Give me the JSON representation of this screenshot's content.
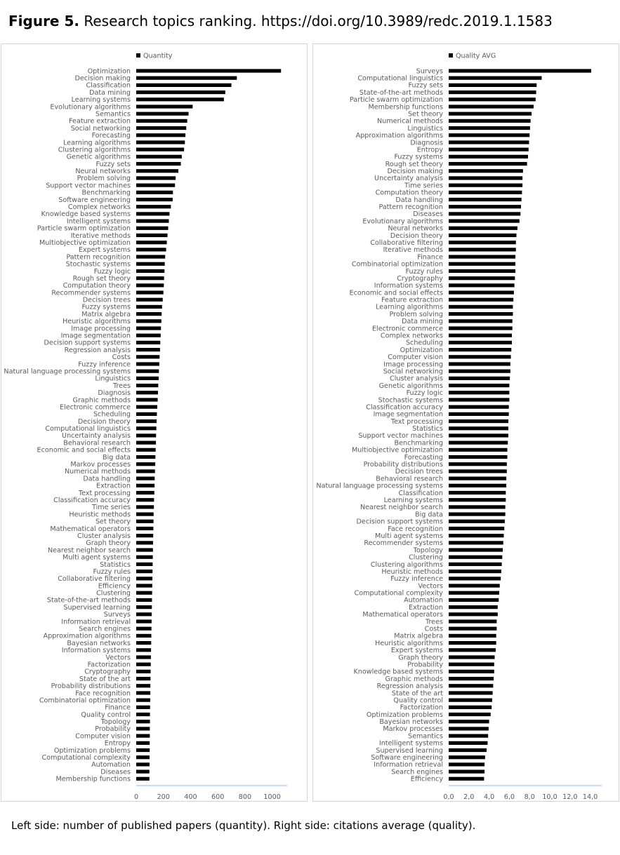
{
  "figure": {
    "label": "Figure 5.",
    "title": "Research topics ranking. https://doi.org/10.3989/redc.2019.1.1583"
  },
  "caption": "Left side: number of published papers (quantity). Right side: citations average (quality).",
  "colors": {
    "bar": "#000000",
    "axis": "#8eb4e3",
    "text": "#595959",
    "border": "#d4d4d4"
  },
  "chart_data": [
    {
      "type": "bar",
      "orientation": "horizontal",
      "legend": {
        "label": "Quantity",
        "position": "top-left"
      },
      "xlim": [
        0,
        1100
      ],
      "ticks": [
        0,
        200,
        400,
        600,
        800,
        1000
      ],
      "tick_labels": [
        "0",
        "200",
        "400",
        "600",
        "800",
        "1000"
      ],
      "grid": false,
      "categories": [
        "Optimization",
        "Decision making",
        "Classification",
        "Data mining",
        "Learning systems",
        "Evolutionary algorithms",
        "Semantics",
        "Feature extraction",
        "Social networking",
        "Forecasting",
        "Learning algorithms",
        "Clustering algorithms",
        "Genetic algorithms",
        "Fuzzy sets",
        "Neural networks",
        "Problem solving",
        "Support vector machines",
        "Benchmarking",
        "Software engineering",
        "Complex networks",
        "Knowledge based systems",
        "Intelligent systems",
        "Particle swarm optimization",
        "Iterative methods",
        "Multiobjective optimization",
        "Expert systems",
        "Pattern recognition",
        "Stochastic systems",
        "Fuzzy logic",
        "Rough set theory",
        "Computation theory",
        "Recommender systems",
        "Decision trees",
        "Fuzzy systems",
        "Matrix algebra",
        "Heuristic algorithms",
        "Image processing",
        "Image segmentation",
        "Decision support systems",
        "Regression analysis",
        "Costs",
        "Fuzzy inference",
        "Natural language processing systems",
        "Linguistics",
        "Trees",
        "Diagnosis",
        "Graphic methods",
        "Electronic commerce",
        "Scheduling",
        "Decision theory",
        "Computational linguistics",
        "Uncertainty analysis",
        "Behavioral research",
        "Economic and social effects",
        "Big data",
        "Markov processes",
        "Numerical methods",
        "Data handling",
        "Extraction",
        "Text processing",
        "Classification accuracy",
        "Time series",
        "Heuristic methods",
        "Set theory",
        "Mathematical operators",
        "Cluster analysis",
        "Graph theory",
        "Nearest neighbor search",
        "Multi agent systems",
        "Statistics",
        "Fuzzy rules",
        "Collaborative filtering",
        "Efficiency",
        "Clustering",
        "State-of-the-art methods",
        "Supervised learning",
        "Surveys",
        "Information retrieval",
        "Search engines",
        "Approximation algorithms",
        "Bayesian networks",
        "Information systems",
        "Vectors",
        "Factorization",
        "Cryptography",
        "State of the art",
        "Probability distributions",
        "Face recognition",
        "Combinatorial optimization",
        "Finance",
        "Quality control",
        "Topology",
        "Probability",
        "Computer vision",
        "Entropy",
        "Optimization problems",
        "Computational complexity",
        "Automation",
        "Diseases",
        "Membership functions"
      ],
      "values": [
        1065,
        740,
        700,
        655,
        645,
        415,
        385,
        375,
        368,
        362,
        358,
        352,
        335,
        328,
        310,
        290,
        285,
        270,
        268,
        255,
        245,
        240,
        235,
        230,
        225,
        220,
        213,
        210,
        208,
        205,
        203,
        200,
        195,
        190,
        187,
        185,
        182,
        180,
        177,
        175,
        172,
        170,
        167,
        165,
        162,
        160,
        158,
        155,
        152,
        150,
        148,
        146,
        145,
        143,
        141,
        140,
        138,
        136,
        135,
        133,
        131,
        130,
        128,
        127,
        126,
        125,
        124,
        123,
        122,
        121,
        120,
        119,
        118,
        117,
        116,
        115,
        114,
        113,
        112,
        111,
        110,
        109,
        108,
        107,
        106,
        105,
        104,
        104,
        103,
        102,
        101,
        101,
        100,
        100,
        99,
        99,
        98,
        98,
        97,
        97
      ]
    },
    {
      "type": "bar",
      "orientation": "horizontal",
      "legend": {
        "label": "Quality AVG",
        "position": "top-left"
      },
      "xlim": [
        0,
        15
      ],
      "ticks": [
        0,
        2,
        4,
        6,
        8,
        10,
        12,
        14
      ],
      "tick_labels": [
        "0,0",
        "2,0",
        "4,0",
        "6,0",
        "8,0",
        "10,0",
        "12,0",
        "14,0"
      ],
      "grid": false,
      "categories": [
        "Surveys",
        "Computational linguistics",
        "Fuzzy sets",
        "State-of-the-art methods",
        "Particle swarm optimization",
        "Membership functions",
        "Set theory",
        "Numerical methods",
        "Linguistics",
        "Approximation algorithms",
        "Diagnosis",
        "Entropy",
        "Fuzzy systems",
        "Rough set theory",
        "Decision making",
        "Uncertainty analysis",
        "Time series",
        "Computation theory",
        "Data handling",
        "Pattern recognition",
        "Diseases",
        "Evolutionary algorithms",
        "Neural networks",
        "Decision theory",
        "Collaborative filtering",
        "Iterative methods",
        "Finance",
        "Combinatorial optimization",
        "Fuzzy rules",
        "Cryptography",
        "Information systems",
        "Economic and social effects",
        "Feature extraction",
        "Learning algorithms",
        "Problem solving",
        "Data mining",
        "Electronic commerce",
        "Complex networks",
        "Scheduling",
        "Optimization",
        "Computer vision",
        "Image processing",
        "Social networking",
        "Cluster analysis",
        "Genetic algorithms",
        "Fuzzy logic",
        "Stochastic systems",
        "Classification accuracy",
        "Image segmentation",
        "Text processing",
        "Statistics",
        "Support vector machines",
        "Benchmarking",
        "Multiobjective optimization",
        "Forecasting",
        "Probability distributions",
        "Decision trees",
        "Behavioral research",
        "Natural language processing systems",
        "Classification",
        "Learning systems",
        "Nearest neighbor search",
        "Big data",
        "Decision support systems",
        "Face recognition",
        "Multi agent systems",
        "Recommender systems",
        "Topology",
        "Clustering",
        "Clustering algorithms",
        "Heuristic methods",
        "Fuzzy inference",
        "Vectors",
        "Computational complexity",
        "Automation",
        "Extraction",
        "Mathematical operators",
        "Trees",
        "Costs",
        "Matrix algebra",
        "Heuristic algorithms",
        "Expert systems",
        "Graph theory",
        "Probability",
        "Knowledge based systems",
        "Graphic methods",
        "Regression analysis",
        "State of the art",
        "Quality control",
        "Factorization",
        "Optimization problems",
        "Bayesian networks",
        "Markov processes",
        "Semantics",
        "Intelligent systems",
        "Supervised learning",
        "Software engineering",
        "Information retrieval",
        "Search engines",
        "Efficiency"
      ],
      "values": [
        14.1,
        9.2,
        8.7,
        8.65,
        8.6,
        8.4,
        8.2,
        8.1,
        8.05,
        8.0,
        7.95,
        7.9,
        7.85,
        7.75,
        7.35,
        7.3,
        7.3,
        7.25,
        7.2,
        7.15,
        7.1,
        7.0,
        6.8,
        6.7,
        6.65,
        6.65,
        6.6,
        6.6,
        6.6,
        6.55,
        6.5,
        6.45,
        6.4,
        6.35,
        6.35,
        6.3,
        6.3,
        6.25,
        6.25,
        6.2,
        6.15,
        6.1,
        6.1,
        6.05,
        6.0,
        6.0,
        6.0,
        5.95,
        5.95,
        5.9,
        5.9,
        5.9,
        5.85,
        5.8,
        5.8,
        5.75,
        5.75,
        5.7,
        5.7,
        5.65,
        5.65,
        5.6,
        5.6,
        5.55,
        5.5,
        5.45,
        5.4,
        5.35,
        5.3,
        5.25,
        5.2,
        5.15,
        5.05,
        5.0,
        4.95,
        4.85,
        4.85,
        4.75,
        4.75,
        4.7,
        4.7,
        4.65,
        4.55,
        4.5,
        4.5,
        4.45,
        4.4,
        4.35,
        4.3,
        4.25,
        4.15,
        4.0,
        3.95,
        3.9,
        3.85,
        3.75,
        3.6,
        3.55,
        3.55,
        3.5
      ]
    }
  ]
}
